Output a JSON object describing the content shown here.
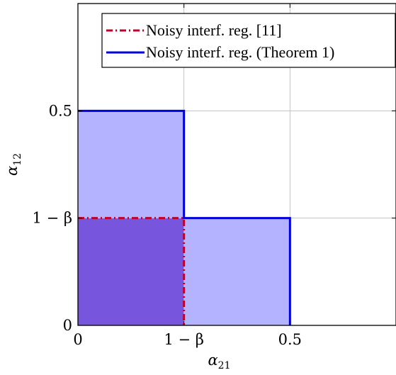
{
  "chart_data": {
    "type": "area",
    "title": "",
    "xlabel": "α21",
    "ylabel": "α12",
    "xlim": [
      0,
      0.9
    ],
    "ylim": [
      0,
      0.9
    ],
    "grid": true,
    "legend_position": "top-right",
    "x_ticks": [
      {
        "value": 0,
        "label": "0"
      },
      {
        "value": 0.3,
        "label": "1 − β"
      },
      {
        "value": 0.6,
        "label": "0.5"
      }
    ],
    "y_ticks": [
      {
        "value": 0,
        "label": "0"
      },
      {
        "value": 0.3,
        "label": "1 − β"
      },
      {
        "value": 0.6,
        "label": "0.5"
      }
    ],
    "series": [
      {
        "name": "Noisy interf. reg. [11]",
        "color": "#c0002a",
        "fill": "#7755dd",
        "line_style": "dash-dot",
        "points": [
          [
            0,
            0.3
          ],
          [
            0.3,
            0.3
          ],
          [
            0.3,
            0
          ]
        ]
      },
      {
        "name": "Noisy interf. reg. (Theorem 1)",
        "color": "#0000dd",
        "fill": "#b3b3ff",
        "line_style": "solid",
        "points": [
          [
            0,
            0.6
          ],
          [
            0.3,
            0.6
          ],
          [
            0.3,
            0.3
          ],
          [
            0.6,
            0.3
          ],
          [
            0.6,
            0
          ]
        ]
      }
    ]
  }
}
